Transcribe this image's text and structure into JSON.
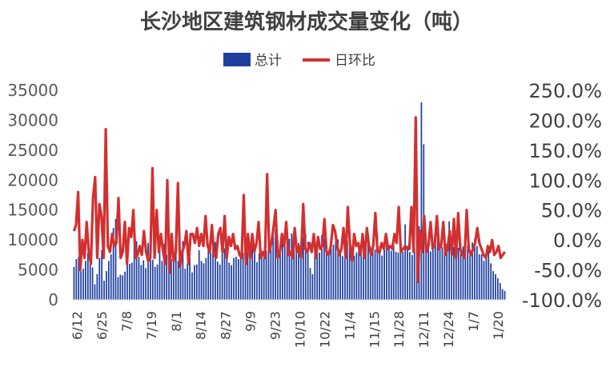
{
  "chart_data": {
    "type": "bar+line",
    "title": "长沙地区建筑钢材成交量变化（吨）",
    "legend": {
      "placement": "top-center",
      "items": [
        {
          "name": "总计",
          "kind": "bar",
          "color": "#1f3f9f"
        },
        {
          "name": "日环比",
          "kind": "line",
          "color": "#d32f2f"
        }
      ]
    },
    "x_tick_labels": [
      "6/12",
      "6/25",
      "7/8",
      "7/19",
      "8/1",
      "8/14",
      "8/27",
      "9/9",
      "9/23",
      "10/10",
      "10/22",
      "11/4",
      "11/15",
      "11/28",
      "12/11",
      "12/24",
      "1/7",
      "1/20"
    ],
    "y_left": {
      "min": 0,
      "max": 35000,
      "step": 5000,
      "ticks": [
        "0",
        "5000",
        "10000",
        "15000",
        "20000",
        "25000",
        "30000",
        "35000"
      ]
    },
    "y_right": {
      "min": -100,
      "max": 250,
      "step": 50,
      "ticks": [
        "-100.0%",
        "-50.0%",
        "0.0%",
        "50.0%",
        "100.0%",
        "150.0%",
        "200.0%",
        "250.0%"
      ]
    },
    "series": [
      {
        "name": "总计",
        "axis": "left",
        "color": "#1f3f9f",
        "values": [
          5500,
          6800,
          7200,
          4800,
          5200,
          6500,
          7800,
          6000,
          5400,
          2600,
          4300,
          7000,
          8300,
          3200,
          4800,
          6500,
          7600,
          12000,
          13500,
          3800,
          4200,
          4100,
          4700,
          6200,
          6000,
          6200,
          10800,
          9800,
          7200,
          5800,
          6600,
          5300,
          9500,
          6900,
          6700,
          5500,
          5900,
          9800,
          6500,
          9400,
          7500,
          7000,
          6800,
          6900,
          8100,
          6500,
          5800,
          9800,
          5200,
          6100,
          7100,
          4600,
          5800,
          5900,
          8300,
          6500,
          6100,
          7000,
          8300,
          7900,
          8600,
          9700,
          6400,
          5900,
          9200,
          8600,
          7600,
          6200,
          5800,
          7000,
          7200,
          6800,
          7200,
          7900,
          7500,
          8000,
          7600,
          9500,
          7800,
          6300,
          7800,
          7600,
          7600,
          8200,
          8800,
          9600,
          12500,
          11800,
          9900,
          8800,
          9500,
          10300,
          9900,
          10200,
          11100,
          10300,
          8900,
          9500,
          9800,
          10500,
          11000,
          9700,
          5300,
          4300,
          8700,
          9400,
          7900,
          10800,
          10200,
          9200,
          8200,
          8600,
          9200,
          9800,
          10100,
          8400,
          7300,
          6900,
          9900,
          9500,
          8500,
          7400,
          7900,
          9200,
          8800,
          8300,
          9300,
          10100,
          8900,
          8600,
          8400,
          10800,
          9000,
          7400,
          8600,
          9600,
          8800,
          8200,
          9100,
          8000,
          7900,
          8300,
          8000,
          12600,
          9000,
          8000,
          7500,
          8500,
          10600,
          12300,
          33000,
          26000,
          10000,
          9300,
          8100,
          9300,
          10000,
          11200,
          9300,
          8800,
          10200,
          9400,
          13100,
          9400,
          8800,
          8200,
          8700,
          9500,
          8900,
          8400,
          9200,
          8400,
          9600,
          10200,
          9000,
          7600,
          7600,
          6500,
          7600,
          8200,
          6100,
          4800,
          4300,
          3600,
          2800,
          1800,
          1500
        ]
      },
      {
        "name": "日环比",
        "axis": "right",
        "color": "#d32f2f",
        "values": [
          15,
          25,
          80,
          -50,
          0,
          -30,
          30,
          -20,
          -40,
          70,
          105,
          -30,
          60,
          40,
          -30,
          185,
          -10,
          -20,
          10,
          -10,
          -5,
          70,
          -30,
          -20,
          30,
          -40,
          20,
          5,
          50,
          -30,
          -25,
          -10,
          -25,
          15,
          -20,
          -35,
          -30,
          120,
          -30,
          50,
          -20,
          10,
          -20,
          -40,
          100,
          -55,
          10,
          -35,
          -20,
          95,
          -45,
          -20,
          -10,
          15,
          -40,
          10,
          10,
          -5,
          20,
          -10,
          10,
          -10,
          40,
          -10,
          -20,
          25,
          -25,
          -30,
          10,
          20,
          -20,
          40,
          -30,
          5,
          -10,
          10,
          -15,
          -10,
          -25,
          -30,
          75,
          -40,
          10,
          -30,
          10,
          -20,
          -5,
          30,
          -30,
          -20,
          -30,
          110,
          -20,
          -5,
          20,
          50,
          -30,
          -20,
          10,
          -10,
          30,
          -25,
          -20,
          -30,
          20,
          -20,
          -10,
          -30,
          60,
          -15,
          -20,
          -5,
          -20,
          10,
          -30,
          5,
          -15,
          -10,
          35,
          -20,
          -25,
          -10,
          25,
          15,
          -10,
          -25,
          -15,
          20,
          -30,
          55,
          -5,
          -35,
          10,
          -10,
          -5,
          -25,
          10,
          -30,
          20,
          -10,
          -25,
          -10,
          45,
          -20,
          -20,
          -5,
          -15,
          10,
          -15,
          -10,
          -15,
          10,
          -5,
          55,
          -20,
          -15,
          -10,
          -15,
          -15,
          55,
          -20,
          205,
          -70,
          15,
          -20,
          40,
          -20,
          -10,
          30,
          -15,
          -5,
          40,
          -15,
          -10,
          30,
          -25,
          -15,
          15,
          -25,
          35,
          -30,
          45,
          -15,
          -25,
          -30,
          50,
          -15,
          -25,
          -15,
          -5,
          20,
          -5,
          -15,
          -25,
          -30,
          -10,
          -20,
          0,
          -25,
          -20,
          -10,
          -30,
          -25,
          -20
        ]
      }
    ]
  }
}
